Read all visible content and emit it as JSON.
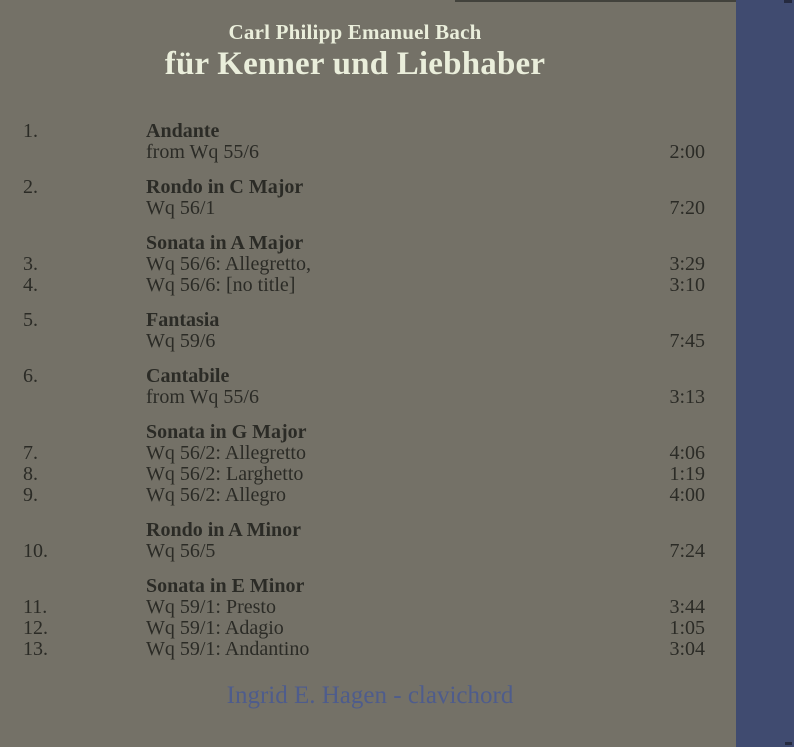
{
  "cover": {
    "artist": "Carl Philipp Emanuel Bach",
    "album_title": "für Kenner und Liebhaber",
    "performer_credit": "Ingrid E. Hagen - clavichord"
  },
  "colors": {
    "background": "#747167",
    "stripe": "#404B70",
    "title_text": "#EAEEDB",
    "track_text": "#2B2B26",
    "credit_text": "#4E5C8C",
    "artifact_dark": "#3A3A35",
    "artifact_navy": "#252A3F"
  },
  "tracks": {
    "groups": [
      {
        "number": "1.",
        "title": "Andante",
        "lines": [
          {
            "number": "",
            "text": "from Wq 55/6",
            "time": "2:00"
          }
        ]
      },
      {
        "number": "2.",
        "title": "Rondo in C Major",
        "lines": [
          {
            "number": "",
            "text": "Wq 56/1",
            "time": "7:20"
          }
        ]
      },
      {
        "number": "",
        "title": "Sonata in A Major",
        "lines": [
          {
            "number": "3.",
            "text": "Wq 56/6: Allegretto,",
            "time": "3:29"
          },
          {
            "number": "4.",
            "text": "Wq 56/6: [no title]",
            "time": "3:10"
          }
        ]
      },
      {
        "number": "5.",
        "title": "Fantasia",
        "lines": [
          {
            "number": "",
            "text": "Wq 59/6",
            "time": "7:45"
          }
        ]
      },
      {
        "number": "6.",
        "title": "Cantabile",
        "lines": [
          {
            "number": "",
            "text": "from Wq 55/6",
            "time": "3:13"
          }
        ]
      },
      {
        "number": "",
        "title": "Sonata in G Major",
        "lines": [
          {
            "number": "7.",
            "text": "Wq 56/2: Allegretto",
            "time": "4:06"
          },
          {
            "number": "8.",
            "text": "Wq 56/2: Larghetto",
            "time": "1:19"
          },
          {
            "number": "9.",
            "text": "Wq 56/2: Allegro",
            "time": "4:00"
          }
        ]
      },
      {
        "number": "",
        "title": "Rondo in A Minor",
        "lines": [
          {
            "number": "10.",
            "text": "Wq 56/5",
            "time": "7:24"
          }
        ]
      },
      {
        "number": "",
        "title": "Sonata in E Minor",
        "lines": [
          {
            "number": "11.",
            "text": "Wq 59/1: Presto",
            "time": "3:44"
          },
          {
            "number": "12.",
            "text": "Wq 59/1: Adagio",
            "time": "1:05"
          },
          {
            "number": "13.",
            "text": "Wq 59/1: Andantino",
            "time": "3:04"
          }
        ]
      }
    ]
  }
}
